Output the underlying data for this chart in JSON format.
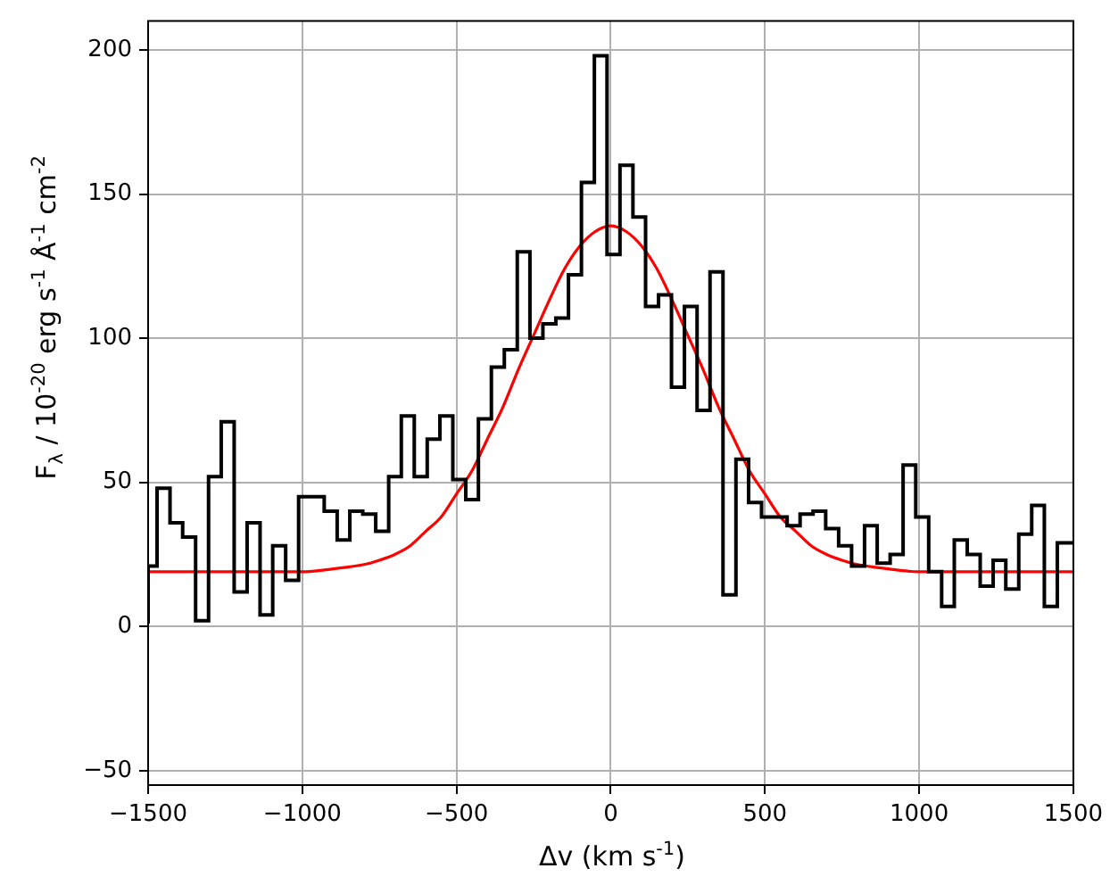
{
  "chart_data": {
    "type": "step",
    "xlabel": "Δv (km s$^{-1}$)",
    "ylabel": "F$_{λ}$ / 10$^{-20}$ erg s$^{-1}$ Å$^{-1}$ cm$^{-2}$",
    "xlim": [
      -1500,
      1500
    ],
    "xticks": [
      -1500,
      -1000,
      -500,
      0,
      500,
      1000,
      1500
    ],
    "ylim": [
      -55,
      210
    ],
    "yticks": [
      -50,
      0,
      50,
      100,
      150,
      200
    ],
    "grid": true,
    "legend": false,
    "series": [
      {
        "color": "#000000",
        "x": [
          -1500,
          -1471,
          -1429,
          -1388,
          -1346,
          -1304,
          -1263,
          -1221,
          -1179,
          -1137,
          -1096,
          -1054,
          -1012,
          -971,
          -929,
          -887,
          -846,
          -804,
          -762,
          -720,
          -679,
          -637,
          -595,
          -554,
          -512,
          -470,
          -429,
          -387,
          -345,
          -303,
          -262,
          -220,
          -178,
          -137,
          -95,
          -53,
          -12,
          30,
          72,
          113,
          155,
          197,
          239,
          280,
          322,
          364,
          406,
          447,
          489,
          531,
          572,
          614,
          656,
          697,
          739,
          781,
          823,
          864,
          906,
          948,
          989,
          1031,
          1073,
          1114,
          1156,
          1198,
          1240,
          1281,
          1323,
          1365,
          1406,
          1448,
          1490
        ],
        "values": [
          1,
          21,
          48,
          36,
          31,
          2,
          52,
          71,
          12,
          36,
          4,
          28,
          16,
          45,
          45,
          40,
          30,
          40,
          39,
          33,
          52,
          73,
          52,
          65,
          73,
          51,
          44,
          72,
          90,
          96,
          130,
          100,
          105,
          107,
          122,
          154,
          198,
          129,
          160,
          142,
          111,
          115,
          83,
          111,
          75,
          123,
          11,
          58,
          43,
          38,
          38,
          35,
          39,
          40,
          34,
          28,
          21,
          35,
          22,
          25,
          56,
          38,
          19,
          7,
          30,
          25,
          14,
          23,
          13,
          32,
          42,
          7,
          29
        ]
      },
      {
        "type": "line",
        "color": "#ff0000",
        "x": [
          -1500,
          -1400,
          -1300,
          -1200,
          -1100,
          -1000,
          -900,
          -800,
          -750,
          -700,
          -650,
          -600,
          -550,
          -500,
          -450,
          -400,
          -350,
          -300,
          -250,
          -200,
          -150,
          -100,
          -50,
          0,
          50,
          100,
          150,
          200,
          250,
          300,
          350,
          400,
          450,
          500,
          550,
          600,
          650,
          700,
          750,
          800,
          900,
          1000,
          1100,
          1200,
          1300,
          1400,
          1500
        ],
        "values": [
          19,
          19,
          19,
          19,
          19,
          19,
          20,
          21.5,
          23,
          25,
          28,
          33,
          38,
          46,
          54,
          65,
          76,
          89,
          101,
          113,
          124,
          132,
          137,
          139,
          137,
          132,
          124,
          113,
          101,
          89,
          76,
          65,
          54,
          46,
          38,
          33,
          28,
          25,
          23,
          21.5,
          20,
          19,
          19,
          19,
          19,
          19,
          19
        ]
      }
    ]
  }
}
